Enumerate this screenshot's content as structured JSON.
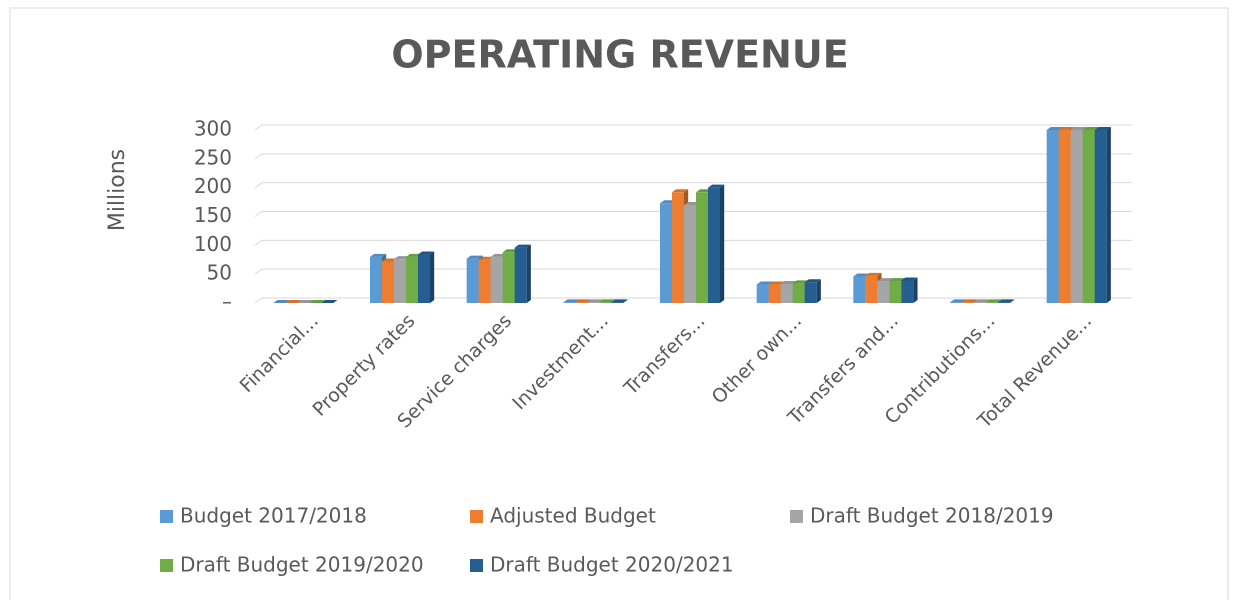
{
  "chart_data": {
    "type": "bar",
    "title": "OPERATING REVENUE",
    "y_axis_label": "Millions",
    "categories": [
      "Financial...",
      "Property rates",
      "Service charges",
      "Investment...",
      "Transfers...",
      "Other own...",
      "Transfers and...",
      "Contributions...",
      "Total Revenue..."
    ],
    "series": [
      {
        "name": "Budget 2017/2018",
        "color": "#5b9bd5",
        "values": [
          0,
          80,
          77,
          1,
          173,
          32,
          46,
          1,
          300
        ]
      },
      {
        "name": "Adjusted Budget",
        "color": "#ed7d31",
        "values": [
          0,
          72,
          75,
          1,
          192,
          32,
          47,
          1,
          300
        ]
      },
      {
        "name": "Draft Budget 2018/2019",
        "color": "#a5a5a5",
        "values": [
          0,
          76,
          80,
          1,
          170,
          33,
          38,
          1,
          300
        ]
      },
      {
        "name": "Draft Budget 2019/2020",
        "color": "#70ad47",
        "values": [
          0,
          80,
          88,
          1,
          192,
          34,
          38,
          1,
          300
        ]
      },
      {
        "name": "Draft Budget 2020/2021",
        "color": "#255e91",
        "values": [
          0,
          84,
          96,
          1,
          200,
          36,
          39,
          1,
          300
        ]
      }
    ],
    "ylim": [
      0,
      300
    ],
    "yticks": [
      {
        "value": 0,
        "label": "–"
      },
      50,
      100,
      150,
      200,
      250,
      300
    ],
    "grid": true,
    "legend": "bottom"
  }
}
